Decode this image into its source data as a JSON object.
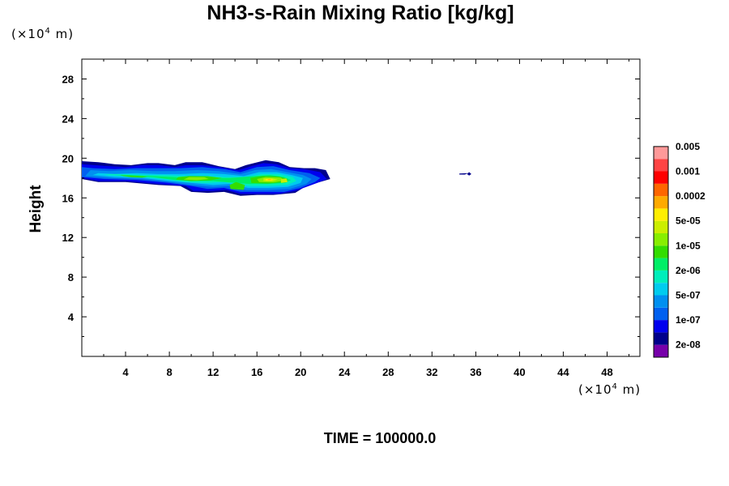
{
  "chart_data": {
    "type": "heatmap",
    "title": "NH3-s-Rain Mixing Ratio [kg/kg]",
    "ylabel": "Height",
    "xlabel": "",
    "x_unit": {
      "prefix": "(×10",
      "exp": "4",
      "suffix": " m)"
    },
    "y_unit": {
      "prefix": "(×10",
      "exp": "4",
      "suffix": " m)"
    },
    "xlim": [
      0,
      51
    ],
    "ylim": [
      0,
      30
    ],
    "x_ticks": [
      4,
      8,
      12,
      16,
      20,
      24,
      28,
      32,
      36,
      40,
      44,
      48
    ],
    "y_ticks": [
      4,
      8,
      12,
      16,
      20,
      24,
      28
    ],
    "colorbar": {
      "colors": [
        "#7700aa",
        "#00008b",
        "#0000ee",
        "#0060f0",
        "#0090f0",
        "#00ccee",
        "#00eebb",
        "#00ee66",
        "#33dd00",
        "#88ee00",
        "#ccee00",
        "#ffee00",
        "#ffaa00",
        "#ff6600",
        "#ff0000",
        "#ff4444",
        "#ff9999"
      ],
      "labels": [
        "2e-08",
        "1e-07",
        "5e-07",
        "2e-06",
        "1e-05",
        "5e-05",
        "0.0002",
        "0.001",
        "0.005"
      ]
    },
    "regions": [
      {
        "level": 1,
        "points": [
          [
            0,
            17.9
          ],
          [
            1.5,
            17.6
          ],
          [
            4,
            17.6
          ],
          [
            7,
            17.3
          ],
          [
            9,
            17.2
          ],
          [
            10,
            16.6
          ],
          [
            11.5,
            16.5
          ],
          [
            13,
            16.6
          ],
          [
            14.5,
            16.2
          ],
          [
            16,
            16.3
          ],
          [
            17.5,
            16.3
          ],
          [
            19.5,
            16.5
          ],
          [
            20.5,
            17.2
          ],
          [
            22.7,
            17.9
          ],
          [
            22.3,
            18.8
          ],
          [
            21.3,
            19.0
          ],
          [
            20.3,
            19.0
          ],
          [
            19,
            19.1
          ],
          [
            18,
            19.6
          ],
          [
            16.8,
            19.8
          ],
          [
            15,
            19.3
          ],
          [
            14,
            18.9
          ],
          [
            12.5,
            19.2
          ],
          [
            11,
            19.6
          ],
          [
            9.5,
            19.6
          ],
          [
            8.5,
            19.3
          ],
          [
            7,
            19.5
          ],
          [
            6,
            19.5
          ],
          [
            4.5,
            19.3
          ],
          [
            3,
            19.4
          ],
          [
            1.5,
            19.6
          ],
          [
            0,
            19.7
          ]
        ]
      },
      {
        "level": 2,
        "points": [
          [
            0,
            18.0
          ],
          [
            1.5,
            17.7
          ],
          [
            4,
            17.7
          ],
          [
            7,
            17.4
          ],
          [
            9.5,
            17.2
          ],
          [
            10.2,
            16.7
          ],
          [
            12,
            16.7
          ],
          [
            13.2,
            16.8
          ],
          [
            14.5,
            16.4
          ],
          [
            16,
            16.4
          ],
          [
            18,
            16.4
          ],
          [
            19.5,
            16.7
          ],
          [
            21.5,
            17.5
          ],
          [
            22.4,
            17.9
          ],
          [
            21.8,
            18.6
          ],
          [
            20.3,
            18.9
          ],
          [
            19,
            19.0
          ],
          [
            17.8,
            19.4
          ],
          [
            16.6,
            19.5
          ],
          [
            15.5,
            19.2
          ],
          [
            14.3,
            18.8
          ],
          [
            12.5,
            19.1
          ],
          [
            11,
            19.3
          ],
          [
            9.5,
            19.3
          ],
          [
            8.5,
            19.1
          ],
          [
            7,
            19.3
          ],
          [
            5.5,
            19.3
          ],
          [
            4,
            19.1
          ],
          [
            2.5,
            19.2
          ],
          [
            1.2,
            19.3
          ],
          [
            0,
            19.4
          ]
        ]
      },
      {
        "level": 3,
        "points": [
          [
            0,
            18.1
          ],
          [
            2,
            17.9
          ],
          [
            5,
            17.8
          ],
          [
            8,
            17.5
          ],
          [
            10,
            17.2
          ],
          [
            11.5,
            16.9
          ],
          [
            13,
            17.0
          ],
          [
            14.5,
            16.6
          ],
          [
            16.5,
            16.6
          ],
          [
            18.5,
            16.6
          ],
          [
            20,
            17.0
          ],
          [
            21.3,
            17.6
          ],
          [
            21.8,
            18.0
          ],
          [
            20.8,
            18.5
          ],
          [
            19,
            18.8
          ],
          [
            17.5,
            19.2
          ],
          [
            16,
            19.1
          ],
          [
            14.5,
            18.6
          ],
          [
            13,
            18.9
          ],
          [
            11,
            19.1
          ],
          [
            9,
            19.0
          ],
          [
            7,
            19.0
          ],
          [
            5,
            19.0
          ],
          [
            3,
            18.9
          ],
          [
            1,
            19.0
          ],
          [
            0,
            19.1
          ]
        ]
      },
      {
        "level": 4,
        "points": [
          [
            0.3,
            18.2
          ],
          [
            2.5,
            18.0
          ],
          [
            5.5,
            17.9
          ],
          [
            8,
            17.6
          ],
          [
            10,
            17.3
          ],
          [
            12,
            17.1
          ],
          [
            13.5,
            17.2
          ],
          [
            15,
            16.8
          ],
          [
            17,
            16.8
          ],
          [
            19,
            16.9
          ],
          [
            20.5,
            17.4
          ],
          [
            21,
            17.9
          ],
          [
            20.2,
            18.3
          ],
          [
            18.8,
            18.6
          ],
          [
            17.3,
            18.9
          ],
          [
            15.8,
            18.8
          ],
          [
            14.5,
            18.4
          ],
          [
            12.5,
            18.7
          ],
          [
            10.5,
            18.8
          ],
          [
            8.5,
            18.7
          ],
          [
            6.5,
            18.7
          ],
          [
            4.5,
            18.8
          ],
          [
            2.5,
            18.7
          ],
          [
            0.8,
            18.8
          ]
        ]
      },
      {
        "level": 5,
        "points": [
          [
            1,
            18.3
          ],
          [
            3,
            18.1
          ],
          [
            5.5,
            18.0
          ],
          [
            8,
            17.7
          ],
          [
            10,
            17.5
          ],
          [
            12,
            17.3
          ],
          [
            13.5,
            17.4
          ],
          [
            15.2,
            17.0
          ],
          [
            17,
            17.0
          ],
          [
            18.8,
            17.1
          ],
          [
            20,
            17.5
          ],
          [
            20.2,
            18.0
          ],
          [
            19.2,
            18.3
          ],
          [
            17.8,
            18.6
          ],
          [
            16.2,
            18.6
          ],
          [
            14.8,
            18.2
          ],
          [
            13,
            18.4
          ],
          [
            11,
            18.5
          ],
          [
            9,
            18.4
          ],
          [
            7,
            18.4
          ],
          [
            5,
            18.5
          ],
          [
            3,
            18.4
          ],
          [
            1.5,
            18.5
          ]
        ]
      },
      {
        "level": 6,
        "points": [
          [
            2,
            18.3
          ],
          [
            4,
            18.2
          ],
          [
            5.5,
            18.1
          ],
          [
            7.5,
            17.9
          ],
          [
            9.5,
            17.6
          ],
          [
            11.5,
            17.5
          ],
          [
            13,
            17.6
          ],
          [
            15.2,
            17.2
          ],
          [
            17,
            17.2
          ],
          [
            18.8,
            17.3
          ],
          [
            19.6,
            17.7
          ],
          [
            19.3,
            18.1
          ],
          [
            18,
            18.4
          ],
          [
            16.4,
            18.4
          ],
          [
            15,
            18.1
          ],
          [
            13.2,
            18.1
          ],
          [
            11.5,
            18.2
          ],
          [
            9.5,
            18.2
          ],
          [
            7.5,
            18.3
          ],
          [
            5.5,
            18.3
          ],
          [
            4,
            18.4
          ],
          [
            2.5,
            18.4
          ]
        ]
      },
      {
        "level": 7,
        "points": [
          [
            3,
            18.3
          ],
          [
            5,
            18.2
          ],
          [
            6.5,
            18.1
          ],
          [
            8.5,
            17.8
          ],
          [
            10.5,
            17.7
          ],
          [
            12,
            17.7
          ],
          [
            15.3,
            17.4
          ],
          [
            17,
            17.4
          ],
          [
            18.6,
            17.5
          ],
          [
            19.1,
            17.8
          ],
          [
            18.5,
            18.1
          ],
          [
            17.2,
            18.3
          ],
          [
            15.8,
            18.2
          ],
          [
            13.5,
            18.0
          ],
          [
            12,
            18.0
          ],
          [
            10,
            18.0
          ],
          [
            8.5,
            18.1
          ],
          [
            6.5,
            18.2
          ],
          [
            4.5,
            18.3
          ]
        ]
      },
      {
        "level": 8,
        "points": [
          [
            3.5,
            18.28
          ],
          [
            5,
            18.2
          ],
          [
            6,
            18.12
          ],
          [
            5.5,
            18.05
          ],
          [
            4.5,
            18.1
          ],
          [
            3.8,
            18.2
          ]
        ]
      },
      {
        "level": 8,
        "points": [
          [
            8.6,
            17.85
          ],
          [
            10,
            17.7
          ],
          [
            11.8,
            17.78
          ],
          [
            12.8,
            18.0
          ],
          [
            11.5,
            18.18
          ],
          [
            9.8,
            18.2
          ],
          [
            8.8,
            18.08
          ]
        ]
      },
      {
        "level": 8,
        "points": [
          [
            15.5,
            17.5
          ],
          [
            17,
            17.45
          ],
          [
            18.5,
            17.6
          ],
          [
            18.8,
            17.9
          ],
          [
            18,
            18.15
          ],
          [
            16.5,
            18.2
          ],
          [
            15.4,
            18.0
          ]
        ]
      },
      {
        "level": 8,
        "points": [
          [
            13.6,
            16.9
          ],
          [
            14.8,
            16.8
          ],
          [
            14.9,
            17.3
          ],
          [
            14.1,
            17.6
          ],
          [
            13.5,
            17.3
          ]
        ]
      },
      {
        "level": 9,
        "points": [
          [
            9.3,
            17.85
          ],
          [
            10.5,
            17.78
          ],
          [
            11.6,
            17.9
          ],
          [
            11.2,
            18.08
          ],
          [
            9.8,
            18.1
          ]
        ]
      },
      {
        "level": 9,
        "points": [
          [
            16.2,
            17.6
          ],
          [
            17.5,
            17.55
          ],
          [
            18.5,
            17.75
          ],
          [
            18.2,
            18.05
          ],
          [
            16.8,
            18.1
          ],
          [
            16,
            17.9
          ]
        ]
      },
      {
        "level": 10,
        "points": [
          [
            16.6,
            17.7
          ],
          [
            17.4,
            17.68
          ],
          [
            17.9,
            17.85
          ],
          [
            17.3,
            17.98
          ],
          [
            16.6,
            17.95
          ]
        ]
      },
      {
        "level": 10,
        "points": [
          [
            18.2,
            17.5
          ],
          [
            18.8,
            17.6
          ],
          [
            18.7,
            17.95
          ],
          [
            18.2,
            17.9
          ]
        ]
      },
      {
        "level": 11,
        "points": [
          [
            16.8,
            17.75
          ],
          [
            17.3,
            17.74
          ],
          [
            17.5,
            17.85
          ],
          [
            17.1,
            17.93
          ],
          [
            16.8,
            17.9
          ]
        ]
      },
      {
        "level": 12,
        "points": [
          [
            17.0,
            17.8
          ],
          [
            17.3,
            17.8
          ],
          [
            17.3,
            17.88
          ],
          [
            17.0,
            17.88
          ]
        ]
      },
      {
        "level": 1,
        "points": [
          [
            34.5,
            18.45
          ],
          [
            35.3,
            18.5
          ],
          [
            35.0,
            18.35
          ],
          [
            34.5,
            18.35
          ]
        ]
      },
      {
        "level": 1,
        "points": [
          [
            35.4,
            18.6
          ],
          [
            35.6,
            18.4
          ],
          [
            35.4,
            18.25
          ],
          [
            35.2,
            18.4
          ]
        ]
      }
    ]
  },
  "footer": {
    "time_label": "TIME = 100000.0"
  }
}
